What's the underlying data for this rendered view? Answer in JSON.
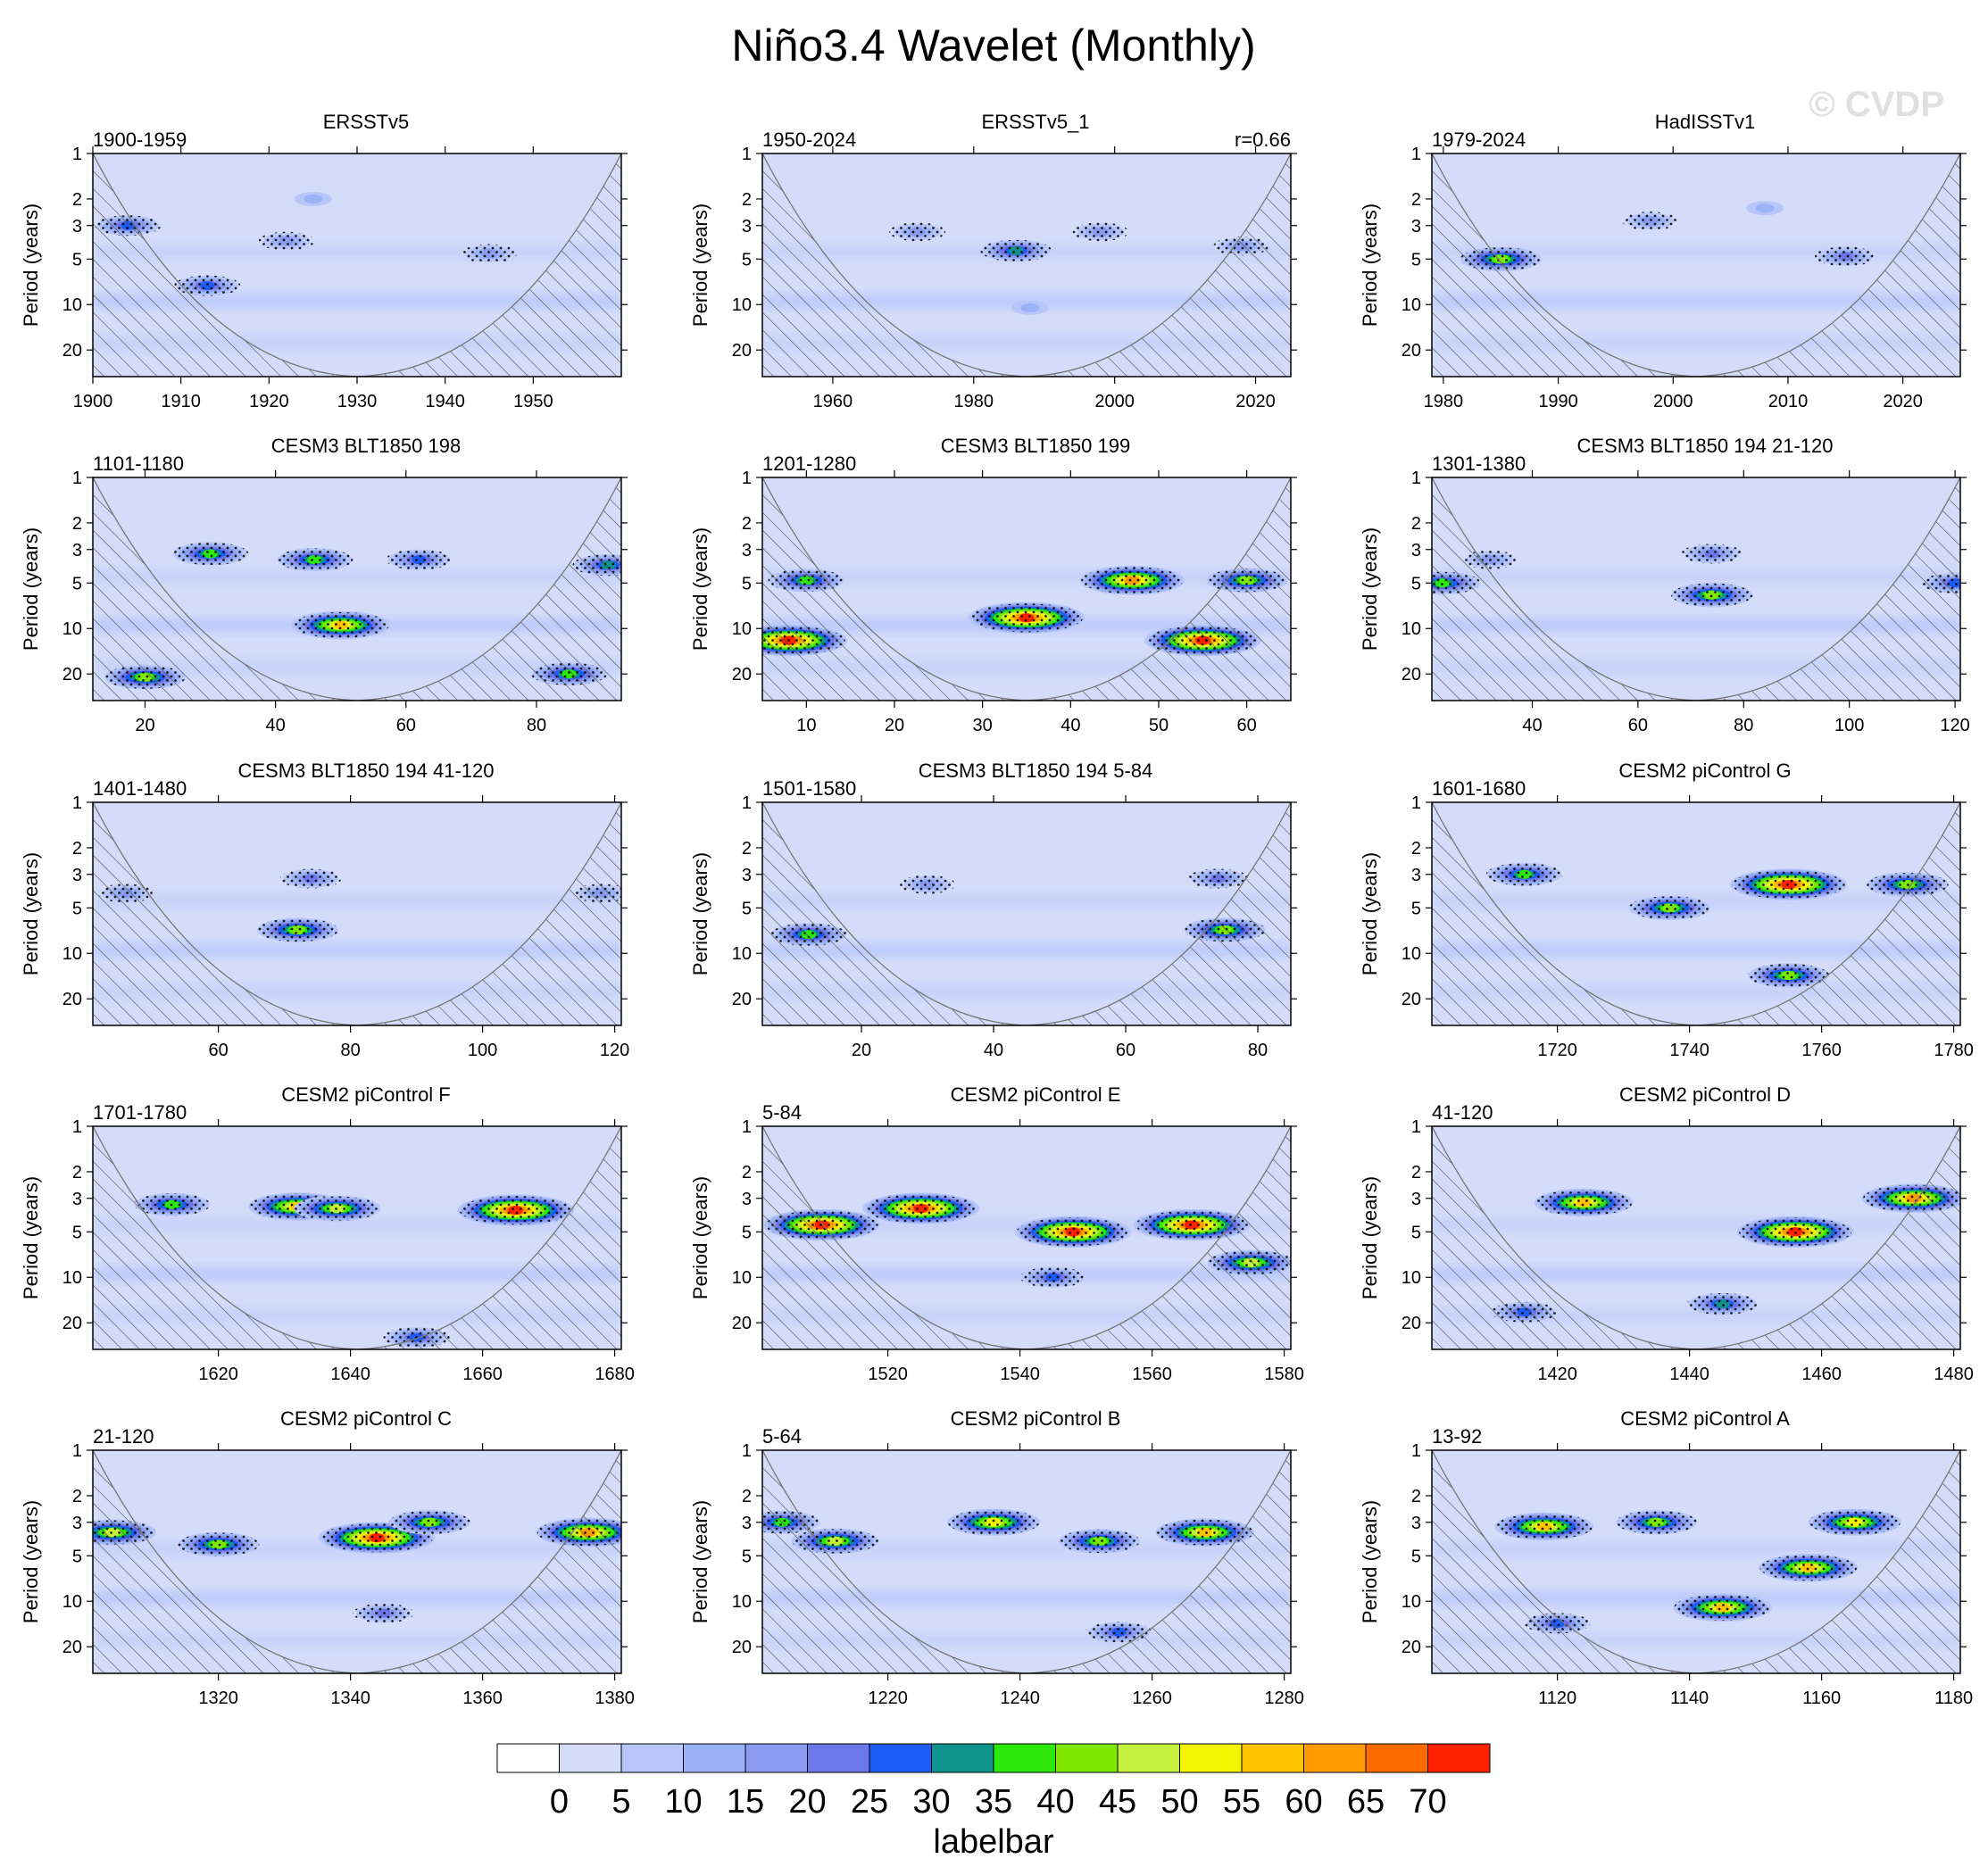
{
  "figure": {
    "title": "Niño3.4 Wavelet (Monthly)",
    "watermark": "© CVDP"
  },
  "colors": {
    "background_power": "#d4dcfa",
    "hatch": "#4b4b4b",
    "coi_line": "#777777",
    "levels": [
      "#ffffff",
      "#d4dcfa",
      "#b7c5f8",
      "#9ab3f8",
      "#8a9bf0",
      "#6c78ea",
      "#1e5cf6",
      "#10938c",
      "#2ce80c",
      "#7fe800",
      "#c4f23c",
      "#f6f500",
      "#ffc400",
      "#ff9a00",
      "#ff6a00",
      "#ff2000"
    ]
  },
  "chart_data": [
    {
      "type": "heatmap",
      "title": "ERSSTv5",
      "left_label": "1900-1959",
      "right_label": "",
      "ylabel": "Period (years)",
      "yticks": [
        "1",
        "2",
        "3",
        "5",
        "10",
        "20"
      ],
      "xticks": [
        "1900",
        "1910",
        "1920",
        "1930",
        "1940",
        "1950"
      ],
      "xlim": [
        1900,
        1960
      ],
      "features": [
        {
          "x": 1904,
          "p": 3,
          "level": 6
        },
        {
          "x": 1913,
          "p": 7.5,
          "level": 6
        },
        {
          "x": 1922,
          "p": 3.8,
          "level": 4
        },
        {
          "x": 1945,
          "p": 4.6,
          "level": 4
        },
        {
          "x": 1925,
          "p": 2,
          "level": 3
        }
      ]
    },
    {
      "type": "heatmap",
      "title": "ERSSTv5_1",
      "left_label": "1950-2024",
      "right_label": "r=0.66",
      "ylabel": "Period (years)",
      "yticks": [
        "1",
        "2",
        "3",
        "5",
        "10",
        "20"
      ],
      "xticks": [
        "1960",
        "1980",
        "2000",
        "2020"
      ],
      "xlim": [
        1950,
        2025
      ],
      "features": [
        {
          "x": 1986,
          "p": 4.4,
          "level": 7
        },
        {
          "x": 1972,
          "p": 3.3,
          "level": 4
        },
        {
          "x": 1998,
          "p": 3.3,
          "level": 4
        },
        {
          "x": 2018,
          "p": 4.1,
          "level": 4
        },
        {
          "x": 1988,
          "p": 10.5,
          "level": 3
        }
      ]
    },
    {
      "type": "heatmap",
      "title": "HadISSTv1",
      "left_label": "1979-2024",
      "right_label": "",
      "ylabel": "Period (years)",
      "yticks": [
        "1",
        "2",
        "3",
        "5",
        "10",
        "20"
      ],
      "xticks": [
        "1980",
        "1990",
        "2000",
        "2010",
        "2020"
      ],
      "xlim": [
        1979,
        2025
      ],
      "features": [
        {
          "x": 1985,
          "p": 5,
          "level": 9
        },
        {
          "x": 1998,
          "p": 2.8,
          "level": 4
        },
        {
          "x": 2015,
          "p": 4.8,
          "level": 5
        },
        {
          "x": 2008,
          "p": 2.3,
          "level": 3
        }
      ]
    },
    {
      "type": "heatmap",
      "title": "CESM3 BLT1850 198",
      "left_label": "1101-1180",
      "right_label": "",
      "ylabel": "Period (years)",
      "yticks": [
        "1",
        "2",
        "3",
        "5",
        "10",
        "20"
      ],
      "xticks": [
        "20",
        "40",
        "60",
        "80"
      ],
      "xlim": [
        12,
        93
      ],
      "features": [
        {
          "x": 50,
          "p": 9.5,
          "level": 12
        },
        {
          "x": 30,
          "p": 3.2,
          "level": 8
        },
        {
          "x": 46,
          "p": 3.5,
          "level": 8
        },
        {
          "x": 62,
          "p": 3.5,
          "level": 6
        },
        {
          "x": 20,
          "p": 21,
          "level": 9
        },
        {
          "x": 85,
          "p": 20,
          "level": 8
        },
        {
          "x": 91,
          "p": 3.8,
          "level": 7
        }
      ]
    },
    {
      "type": "heatmap",
      "title": "CESM3 BLT1850 199",
      "left_label": "1201-1280",
      "right_label": "",
      "ylabel": "Period (years)",
      "yticks": [
        "1",
        "2",
        "3",
        "5",
        "10",
        "20"
      ],
      "xticks": [
        "10",
        "20",
        "30",
        "40",
        "50",
        "60"
      ],
      "xlim": [
        5,
        65
      ],
      "features": [
        {
          "x": 35,
          "p": 8.5,
          "level": 15
        },
        {
          "x": 55,
          "p": 12,
          "level": 15
        },
        {
          "x": 8,
          "p": 12,
          "level": 15
        },
        {
          "x": 47,
          "p": 4.8,
          "level": 13
        },
        {
          "x": 10,
          "p": 4.8,
          "level": 8
        },
        {
          "x": 60,
          "p": 4.8,
          "level": 9
        }
      ]
    },
    {
      "type": "heatmap",
      "title": "CESM3 BLT1850 194 21-120",
      "left_label": "1301-1380",
      "right_label": "",
      "ylabel": "Period (years)",
      "yticks": [
        "1",
        "2",
        "3",
        "5",
        "10",
        "20"
      ],
      "xticks": [
        "40",
        "60",
        "80",
        "100",
        "120"
      ],
      "xlim": [
        21,
        121
      ],
      "features": [
        {
          "x": 74,
          "p": 6,
          "level": 9
        },
        {
          "x": 74,
          "p": 3.2,
          "level": 5
        },
        {
          "x": 23,
          "p": 5,
          "level": 8
        },
        {
          "x": 120,
          "p": 5,
          "level": 6
        },
        {
          "x": 32,
          "p": 3.5,
          "level": 4
        }
      ]
    },
    {
      "type": "heatmap",
      "title": "CESM3 BLT1850 194 41-120",
      "left_label": "1401-1480",
      "right_label": "",
      "ylabel": "Period (years)",
      "yticks": [
        "1",
        "2",
        "3",
        "5",
        "10",
        "20"
      ],
      "xticks": [
        "60",
        "80",
        "100",
        "120"
      ],
      "xlim": [
        41,
        121
      ],
      "features": [
        {
          "x": 72,
          "p": 7,
          "level": 9
        },
        {
          "x": 74,
          "p": 3.2,
          "level": 5
        },
        {
          "x": 46,
          "p": 4,
          "level": 4
        },
        {
          "x": 118,
          "p": 4,
          "level": 4
        }
      ]
    },
    {
      "type": "heatmap",
      "title": "CESM3 BLT1850 194 5-84",
      "left_label": "1501-1580",
      "right_label": "",
      "ylabel": "Period (years)",
      "yticks": [
        "1",
        "2",
        "3",
        "5",
        "10",
        "20"
      ],
      "xticks": [
        "20",
        "40",
        "60",
        "80"
      ],
      "xlim": [
        5,
        85
      ],
      "features": [
        {
          "x": 12,
          "p": 7.5,
          "level": 8
        },
        {
          "x": 75,
          "p": 7,
          "level": 9
        },
        {
          "x": 74,
          "p": 3.2,
          "level": 5
        },
        {
          "x": 30,
          "p": 3.5,
          "level": 4
        }
      ]
    },
    {
      "type": "heatmap",
      "title": "CESM2 piControl G",
      "left_label": "1601-1680",
      "right_label": "",
      "ylabel": "Period (years)",
      "yticks": [
        "1",
        "2",
        "3",
        "5",
        "10",
        "20"
      ],
      "xticks": [
        "1720",
        "1740",
        "1760",
        "1780"
      ],
      "xlim": [
        1701,
        1781
      ],
      "features": [
        {
          "x": 1755,
          "p": 3.5,
          "level": 15
        },
        {
          "x": 1737,
          "p": 5,
          "level": 9
        },
        {
          "x": 1715,
          "p": 3,
          "level": 8
        },
        {
          "x": 1773,
          "p": 3.5,
          "level": 9
        },
        {
          "x": 1755,
          "p": 14,
          "level": 9
        }
      ]
    },
    {
      "type": "heatmap",
      "title": "CESM2 piControl F",
      "left_label": "1701-1780",
      "right_label": "",
      "ylabel": "Period (years)",
      "yticks": [
        "1",
        "2",
        "3",
        "5",
        "10",
        "20"
      ],
      "xticks": [
        "1620",
        "1640",
        "1660",
        "1680"
      ],
      "xlim": [
        1601,
        1681
      ],
      "features": [
        {
          "x": 1665,
          "p": 3.6,
          "level": 15
        },
        {
          "x": 1632,
          "p": 3.4,
          "level": 12
        },
        {
          "x": 1613,
          "p": 3.3,
          "level": 8
        },
        {
          "x": 1650,
          "p": 25,
          "level": 6
        },
        {
          "x": 1638,
          "p": 3.5,
          "level": 10
        }
      ]
    },
    {
      "type": "heatmap",
      "title": "CESM2 piControl E",
      "left_label": "5-84",
      "right_label": "",
      "ylabel": "Period (years)",
      "yticks": [
        "1",
        "2",
        "3",
        "5",
        "10",
        "20"
      ],
      "xticks": [
        "1520",
        "1540",
        "1560",
        "1580"
      ],
      "xlim": [
        1501,
        1581
      ],
      "features": [
        {
          "x": 1525,
          "p": 3.5,
          "level": 15
        },
        {
          "x": 1510,
          "p": 4.5,
          "level": 15
        },
        {
          "x": 1548,
          "p": 5,
          "level": 15
        },
        {
          "x": 1566,
          "p": 4.5,
          "level": 15
        },
        {
          "x": 1575,
          "p": 8,
          "level": 10
        },
        {
          "x": 1545,
          "p": 10,
          "level": 6
        }
      ]
    },
    {
      "type": "heatmap",
      "title": "CESM2 piControl D",
      "left_label": "41-120",
      "right_label": "",
      "ylabel": "Period (years)",
      "yticks": [
        "1",
        "2",
        "3",
        "5",
        "10",
        "20"
      ],
      "xticks": [
        "1420",
        "1440",
        "1460",
        "1480"
      ],
      "xlim": [
        1401,
        1481
      ],
      "features": [
        {
          "x": 1456,
          "p": 5,
          "level": 15
        },
        {
          "x": 1424,
          "p": 3.2,
          "level": 12
        },
        {
          "x": 1474,
          "p": 3,
          "level": 13
        },
        {
          "x": 1445,
          "p": 15,
          "level": 7
        },
        {
          "x": 1415,
          "p": 17,
          "level": 6
        }
      ]
    },
    {
      "type": "heatmap",
      "title": "CESM2 piControl C",
      "left_label": "21-120",
      "right_label": "",
      "ylabel": "Period (years)",
      "yticks": [
        "1",
        "2",
        "3",
        "5",
        "10",
        "20"
      ],
      "xticks": [
        "1320",
        "1340",
        "1360",
        "1380"
      ],
      "xlim": [
        1301,
        1381
      ],
      "features": [
        {
          "x": 1344,
          "p": 3.8,
          "level": 15
        },
        {
          "x": 1376,
          "p": 3.5,
          "level": 13
        },
        {
          "x": 1304,
          "p": 3.5,
          "level": 10
        },
        {
          "x": 1320,
          "p": 4.2,
          "level": 9
        },
        {
          "x": 1352,
          "p": 3,
          "level": 9
        },
        {
          "x": 1345,
          "p": 12,
          "level": 5
        }
      ]
    },
    {
      "type": "heatmap",
      "title": "CESM2 piControl B",
      "left_label": "5-64",
      "right_label": "",
      "ylabel": "Period (years)",
      "yticks": [
        "1",
        "2",
        "3",
        "5",
        "10",
        "20"
      ],
      "xticks": [
        "1220",
        "1240",
        "1260",
        "1280"
      ],
      "xlim": [
        1201,
        1281
      ],
      "features": [
        {
          "x": 1212,
          "p": 4,
          "level": 10
        },
        {
          "x": 1236,
          "p": 3,
          "level": 11
        },
        {
          "x": 1268,
          "p": 3.5,
          "level": 12
        },
        {
          "x": 1252,
          "p": 4,
          "level": 9
        },
        {
          "x": 1255,
          "p": 16,
          "level": 6
        },
        {
          "x": 1204,
          "p": 3,
          "level": 8
        }
      ]
    },
    {
      "type": "heatmap",
      "title": "CESM2 piControl A",
      "left_label": "13-92",
      "right_label": "",
      "ylabel": "Period (years)",
      "yticks": [
        "1",
        "2",
        "3",
        "5",
        "10",
        "20"
      ],
      "xticks": [
        "1120",
        "1140",
        "1160",
        "1180"
      ],
      "xlim": [
        1101,
        1181
      ],
      "features": [
        {
          "x": 1145,
          "p": 11,
          "level": 12
        },
        {
          "x": 1158,
          "p": 6,
          "level": 12
        },
        {
          "x": 1118,
          "p": 3.2,
          "level": 12
        },
        {
          "x": 1165,
          "p": 3,
          "level": 11
        },
        {
          "x": 1135,
          "p": 3,
          "level": 9
        },
        {
          "x": 1120,
          "p": 14,
          "level": 6
        }
      ]
    }
  ],
  "labelbar": {
    "title": "labelbar",
    "labels": [
      "0",
      "5",
      "10",
      "15",
      "20",
      "25",
      "30",
      "35",
      "40",
      "45",
      "50",
      "55",
      "60",
      "65",
      "70"
    ]
  }
}
